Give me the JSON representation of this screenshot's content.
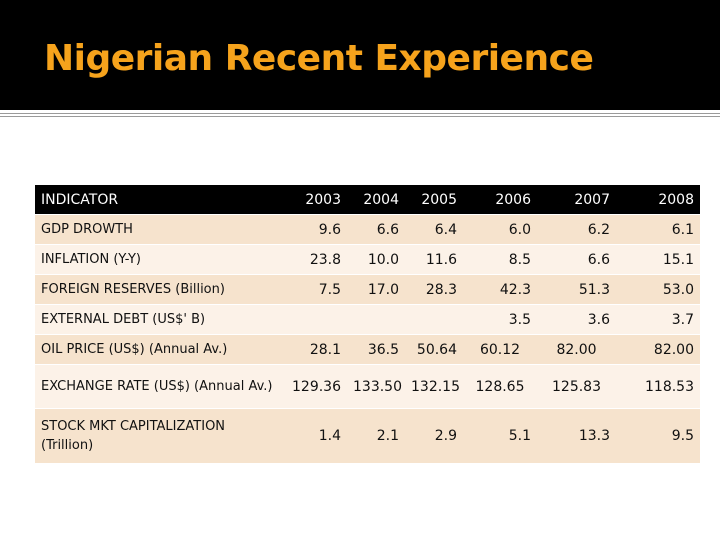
{
  "slide": {
    "title": "Nigerian Recent Experience"
  },
  "table": {
    "header": {
      "indicator": "INDICATOR",
      "years": [
        "2003",
        "2004",
        "2005",
        "2006",
        "2007",
        "2008"
      ]
    },
    "rows": [
      {
        "label": "GDP DROWTH",
        "values": [
          "9.6",
          "6.6",
          "6.4",
          "6.0",
          "6.2",
          "6.1"
        ]
      },
      {
        "label": "INFLATION (Y-Y)",
        "values": [
          "23.8",
          "10.0",
          "11.6",
          "8.5",
          "6.6",
          "15.1"
        ]
      },
      {
        "label": "FOREIGN RESERVES (Billion)",
        "values": [
          "7.5",
          "17.0",
          "28.3",
          "42.3",
          "51.3",
          "53.0"
        ]
      },
      {
        "label": "EXTERNAL DEBT (US$' B)",
        "values": [
          "",
          "",
          "",
          "3.5",
          "3.6",
          "3.7"
        ]
      },
      {
        "label": "OIL PRICE (US$) (Annual Av.)",
        "values": [
          "28.1",
          "36.5",
          "50.64",
          "60.12",
          "82.00",
          "82.00"
        ]
      },
      {
        "label": "EXCHANGE RATE (US$) (Annual Av.)",
        "values": [
          "129.36",
          "133.50",
          "132.15",
          "128.65",
          "125.83",
          "118.53"
        ]
      },
      {
        "label": "STOCK MKT CAPITALIZATION (Trillion)",
        "values": [
          "1.4",
          "2.1",
          "2.9",
          "5.1",
          "13.3",
          "9.5"
        ]
      }
    ]
  },
  "colors": {
    "title": "#f6a31c",
    "band": "#000000",
    "row_odd": "#f6e3cd",
    "row_even": "#fcf2e8"
  }
}
